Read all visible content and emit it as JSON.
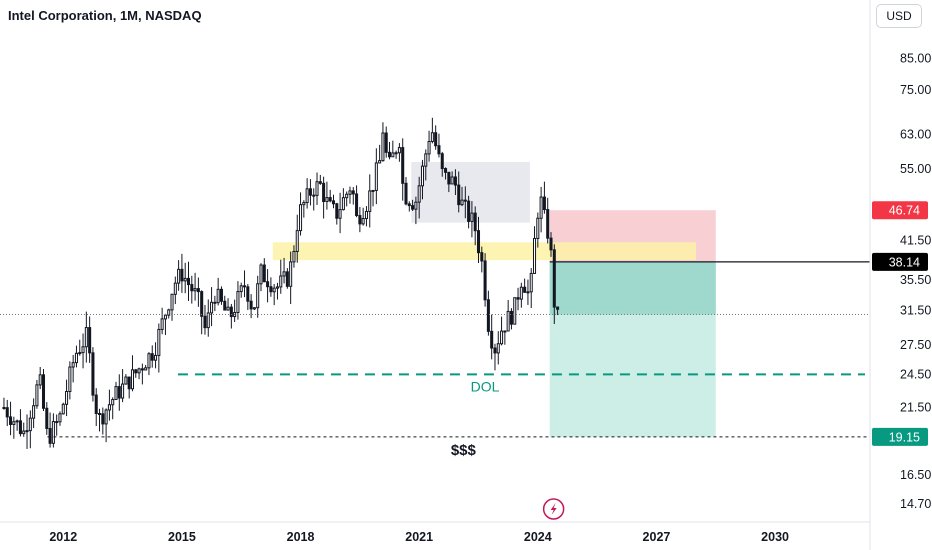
{
  "title": "Intel Corporation, 1M, NASDAQ",
  "currency": "USD",
  "colors": {
    "up": "#131722",
    "down": "#131722",
    "stop_zone": "#f8cfd3",
    "target_zone": "#9fd8cd",
    "target_zone_light": "#cdeee7",
    "fvg_yellow": "#fdf1a6",
    "gray_box": "#e8e9ee",
    "dashed_green": "#089981",
    "badge_red": "#f23645",
    "badge_green": "#089981",
    "badge_black": "#000000"
  },
  "chart_data": {
    "type": "candlestick",
    "y_scale": "log",
    "ylim": [
      13.7,
      95
    ],
    "xlim": [
      2010.4,
      2032.4
    ],
    "y_ticks": [
      "85.00",
      "75.00",
      "63.00",
      "55.00",
      "41.50",
      "35.50",
      "31.50",
      "27.50",
      "24.50",
      "21.50",
      "16.50",
      "14.70"
    ],
    "x_ticks": [
      "2012",
      "2015",
      "2018",
      "2021",
      "2024",
      "2027",
      "2030"
    ],
    "price_badges": {
      "stop": "46.74",
      "current": "38.14",
      "target": "19.15"
    },
    "annotations": {
      "dol_label": "DOL",
      "dol_level": 24.5,
      "liquidity_label": "$$$",
      "liquidity_level": 19.15,
      "dotted_level": 31.0
    },
    "zones": {
      "gray_box": {
        "x0": 2020.8,
        "x1": 2023.8,
        "y0": 44.5,
        "y1": 56.5
      },
      "fvg_yellow": {
        "x0": 2017.3,
        "x1": 2028.0,
        "y0": 38.4,
        "y1": 41.2
      },
      "stop_zone": {
        "x0": 2024.3,
        "x1": 2028.5,
        "y0": 38.14,
        "y1": 46.74
      },
      "target_zone": {
        "x0": 2024.3,
        "x1": 2028.5,
        "y0": 19.15,
        "y1": 38.14
      },
      "target_zone_dark_to": 31.0
    },
    "anchors": [
      [
        2010.5,
        21.5
      ],
      [
        2011.0,
        19.5
      ],
      [
        2011.4,
        24.0
      ],
      [
        2011.6,
        19.0
      ],
      [
        2011.9,
        20.5
      ],
      [
        2012.3,
        26.5
      ],
      [
        2012.6,
        28.5
      ],
      [
        2012.8,
        22.0
      ],
      [
        2012.9,
        20.5
      ],
      [
        2013.3,
        22.5
      ],
      [
        2013.8,
        24.5
      ],
      [
        2014.3,
        27.0
      ],
      [
        2014.8,
        35.0
      ],
      [
        2015.0,
        36.5
      ],
      [
        2015.4,
        33.0
      ],
      [
        2015.6,
        29.0
      ],
      [
        2015.8,
        34.0
      ],
      [
        2016.2,
        30.5
      ],
      [
        2016.6,
        35.0
      ],
      [
        2016.8,
        31.5
      ],
      [
        2017.0,
        36.5
      ],
      [
        2017.4,
        34.5
      ],
      [
        2017.7,
        36.0
      ],
      [
        2017.8,
        39.0
      ],
      [
        2017.95,
        46.0
      ],
      [
        2018.3,
        51.0
      ],
      [
        2018.5,
        51.5
      ],
      [
        2018.7,
        47.5
      ],
      [
        2018.9,
        46.0
      ],
      [
        2019.3,
        52.0
      ],
      [
        2019.4,
        45.0
      ],
      [
        2019.7,
        48.5
      ],
      [
        2020.0,
        56.5
      ],
      [
        2020.1,
        66.0
      ],
      [
        2020.2,
        54.5
      ],
      [
        2020.5,
        62.0
      ],
      [
        2020.6,
        50.0
      ],
      [
        2020.9,
        48.0
      ],
      [
        2021.1,
        55.5
      ],
      [
        2021.3,
        65.0
      ],
      [
        2021.6,
        53.5
      ],
      [
        2021.9,
        52.0
      ],
      [
        2022.1,
        47.5
      ],
      [
        2022.4,
        44.0
      ],
      [
        2022.6,
        37.5
      ],
      [
        2022.75,
        30.0
      ],
      [
        2022.9,
        27.0
      ],
      [
        2023.1,
        29.5
      ],
      [
        2023.4,
        31.5
      ],
      [
        2023.6,
        36.0
      ],
      [
        2023.8,
        33.0
      ],
      [
        2023.95,
        44.0
      ],
      [
        2024.05,
        49.5
      ],
      [
        2024.2,
        44.0
      ],
      [
        2024.3,
        42.0
      ],
      [
        2024.45,
        30.3
      ],
      [
        2024.55,
        30.8
      ]
    ]
  }
}
